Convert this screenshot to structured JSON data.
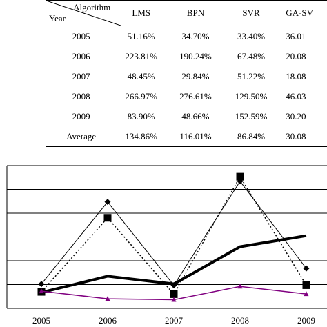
{
  "table": {
    "header_algorithm": "Algorithm",
    "header_year": "Year",
    "columns": [
      "LMS",
      "BPN",
      "SVR",
      "GA-SV"
    ],
    "rows": [
      {
        "year": "2005",
        "cells": [
          "51.16%",
          "34.70%",
          "33.40%",
          "36.01"
        ]
      },
      {
        "year": "2006",
        "cells": [
          "223.81%",
          "190.24%",
          "67.48%",
          "20.08"
        ]
      },
      {
        "year": "2007",
        "cells": [
          "48.45%",
          "29.84%",
          "51.22%",
          "18.08"
        ]
      },
      {
        "year": "2008",
        "cells": [
          "266.97%",
          "276.61%",
          "129.50%",
          "46.03"
        ]
      },
      {
        "year": "2009",
        "cells": [
          "83.90%",
          "48.66%",
          "152.59%",
          "30.20"
        ]
      },
      {
        "year": "Average",
        "cells": [
          "134.86%",
          "116.01%",
          "86.84%",
          "30.08"
        ]
      }
    ]
  },
  "chart_data": {
    "type": "line",
    "title": "",
    "xlabel": "",
    "ylabel": "",
    "categories": [
      "2005",
      "2006",
      "2007",
      "2008",
      "2009"
    ],
    "ylim": [
      0,
      300
    ],
    "grid": true,
    "series": [
      {
        "key": "lms",
        "values": [
          51.16,
          223.81,
          48.45,
          266.97,
          83.9
        ],
        "color": "#000000",
        "marker": "diamond",
        "dash": "solid",
        "stroke": 1
      },
      {
        "key": "bpn",
        "values": [
          34.7,
          190.24,
          29.84,
          276.61,
          48.66
        ],
        "color": "#000000",
        "marker": "square",
        "dash": "dotted",
        "stroke": 1.5
      },
      {
        "key": "svr",
        "values": [
          33.4,
          67.48,
          51.22,
          129.5,
          152.59
        ],
        "color": "#000000",
        "marker": "none",
        "dash": "solid",
        "stroke": 4
      },
      {
        "key": "gasv",
        "values": [
          36.01,
          20.08,
          18.08,
          46.03,
          30.2
        ],
        "color": "#800080",
        "marker": "triangle",
        "dash": "solid",
        "stroke": 1.5
      }
    ]
  }
}
